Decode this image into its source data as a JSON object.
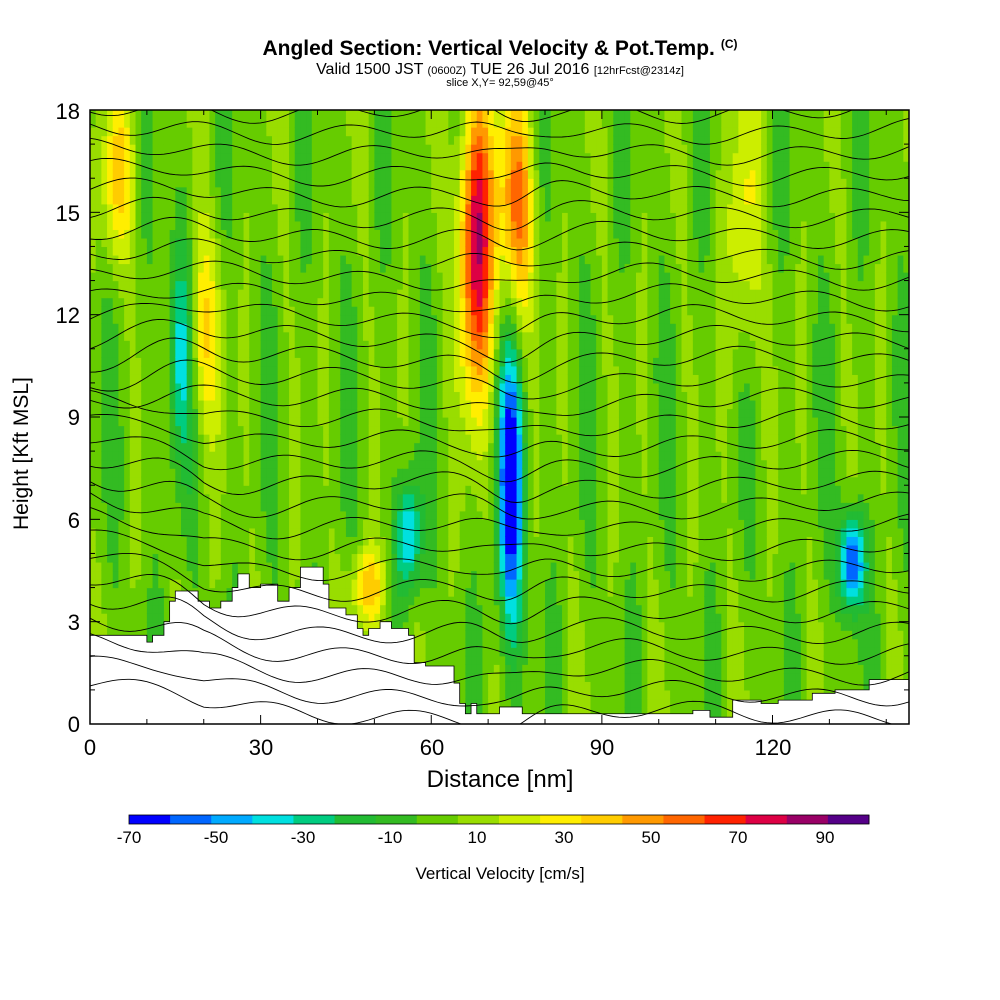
{
  "header": {
    "title": "Angled Section: Vertical Velocity & Pot.Temp.",
    "copyright": "(C)",
    "valid_main": "Valid 1500 JST",
    "valid_utc": "(0600Z)",
    "valid_date": "TUE 26 Jul 2016",
    "forecast": "[12hrFcst@2314z]",
    "slice": "slice X,Y= 92,59@45°"
  },
  "chart_data": {
    "type": "heatmap",
    "xlabel": "Distance [nm]",
    "ylabel": "Height [Kft MSL]",
    "xlim": [
      0,
      144
    ],
    "ylim": [
      0,
      18
    ],
    "xticks": [
      "0",
      "30",
      "60",
      "90",
      "120"
    ],
    "yticks": [
      "0",
      "3",
      "6",
      "9",
      "12",
      "15",
      "18"
    ],
    "colorbar": {
      "label": "Vertical Velocity [cm/s]",
      "tick_labels": [
        "-70",
        "-50",
        "-30",
        "-10",
        "10",
        "30",
        "50",
        "70",
        "90"
      ],
      "bins": [
        -70,
        -60,
        -50,
        -40,
        -30,
        -20,
        -10,
        0,
        10,
        20,
        30,
        40,
        50,
        60,
        70,
        80,
        90,
        100
      ],
      "colors": [
        "#0000ff",
        "#0066ff",
        "#00aaff",
        "#00e0e0",
        "#00cc80",
        "#22bb33",
        "#33bb22",
        "#66cc00",
        "#99dd00",
        "#ccee00",
        "#ffee00",
        "#ffcc00",
        "#ff9900",
        "#ff6600",
        "#ff2200",
        "#dd0044",
        "#990066",
        "#550088"
      ]
    },
    "terrain_kft": [
      [
        0,
        2.6
      ],
      [
        10,
        2.6
      ],
      [
        10,
        2.4
      ],
      [
        11,
        2.4
      ],
      [
        11,
        2.6
      ],
      [
        13,
        2.6
      ],
      [
        13,
        3.0
      ],
      [
        14,
        3.0
      ],
      [
        14,
        3.6
      ],
      [
        15,
        3.6
      ],
      [
        15,
        3.9
      ],
      [
        19,
        3.9
      ],
      [
        19,
        3.6
      ],
      [
        21,
        3.6
      ],
      [
        21,
        3.4
      ],
      [
        23,
        3.4
      ],
      [
        23,
        3.6
      ],
      [
        25,
        3.6
      ],
      [
        25,
        4.0
      ],
      [
        26,
        4.0
      ],
      [
        26,
        4.4
      ],
      [
        28,
        4.4
      ],
      [
        28,
        4.0
      ],
      [
        30,
        4.0
      ],
      [
        30,
        4.1
      ],
      [
        33,
        4.1
      ],
      [
        33,
        3.6
      ],
      [
        35,
        3.6
      ],
      [
        35,
        4.0
      ],
      [
        37,
        4.0
      ],
      [
        37,
        4.6
      ],
      [
        41,
        4.6
      ],
      [
        41,
        4.1
      ],
      [
        42,
        4.1
      ],
      [
        42,
        3.4
      ],
      [
        45,
        3.4
      ],
      [
        45,
        3.2
      ],
      [
        47,
        3.2
      ],
      [
        47,
        2.8
      ],
      [
        48,
        2.8
      ],
      [
        48,
        2.6
      ],
      [
        49,
        2.6
      ],
      [
        49,
        2.8
      ],
      [
        51,
        2.8
      ],
      [
        51,
        3.0
      ],
      [
        53,
        3.0
      ],
      [
        53,
        2.8
      ],
      [
        56,
        2.8
      ],
      [
        56,
        2.6
      ],
      [
        57,
        2.6
      ],
      [
        57,
        1.8
      ],
      [
        59,
        1.8
      ],
      [
        59,
        1.7
      ],
      [
        64,
        1.7
      ],
      [
        64,
        1.2
      ],
      [
        65,
        1.2
      ],
      [
        65,
        0.6
      ],
      [
        66,
        0.6
      ],
      [
        66,
        0.3
      ],
      [
        67,
        0.3
      ],
      [
        67,
        0.6
      ],
      [
        68,
        0.6
      ],
      [
        68,
        0.3
      ],
      [
        72,
        0.3
      ],
      [
        72,
        0.5
      ],
      [
        76,
        0.5
      ],
      [
        76,
        0.3
      ],
      [
        106,
        0.3
      ],
      [
        106,
        0.4
      ],
      [
        109,
        0.4
      ],
      [
        109,
        0.2
      ],
      [
        113,
        0.2
      ],
      [
        113,
        0.7
      ],
      [
        118,
        0.7
      ],
      [
        118,
        0.6
      ],
      [
        121,
        0.6
      ],
      [
        121,
        0.7
      ],
      [
        127,
        0.7
      ],
      [
        127,
        0.9
      ],
      [
        131,
        0.9
      ],
      [
        131,
        1.0
      ],
      [
        137,
        1.0
      ],
      [
        137,
        1.3
      ],
      [
        144,
        1.3
      ]
    ],
    "updraft_cores": [
      {
        "x": 68,
        "y_range": [
          10.5,
          18
        ],
        "peak": 90
      },
      {
        "x": 75,
        "y_range": [
          12,
          18
        ],
        "peak": 60
      },
      {
        "x": 5,
        "y_range": [
          14,
          18
        ],
        "peak": 40
      },
      {
        "x": 20,
        "y_range": [
          9,
          14
        ],
        "peak": 40
      },
      {
        "x": 49,
        "y_range": [
          3,
          5
        ],
        "peak": 45
      },
      {
        "x": 115,
        "y_range": [
          11,
          18
        ],
        "peak": 30
      }
    ],
    "downdraft_cores": [
      {
        "x": 74,
        "y_range": [
          3,
          11
        ],
        "peak": -70
      },
      {
        "x": 16,
        "y_range": [
          8,
          14
        ],
        "peak": -35
      },
      {
        "x": 56,
        "y_range": [
          4,
          7
        ],
        "peak": -45
      },
      {
        "x": 134,
        "y_range": [
          3.5,
          6
        ],
        "peak": -65
      }
    ],
    "isentropes": {
      "count": 30,
      "from_kft": 0.3,
      "to_kft": 18,
      "color": "#000000"
    }
  }
}
